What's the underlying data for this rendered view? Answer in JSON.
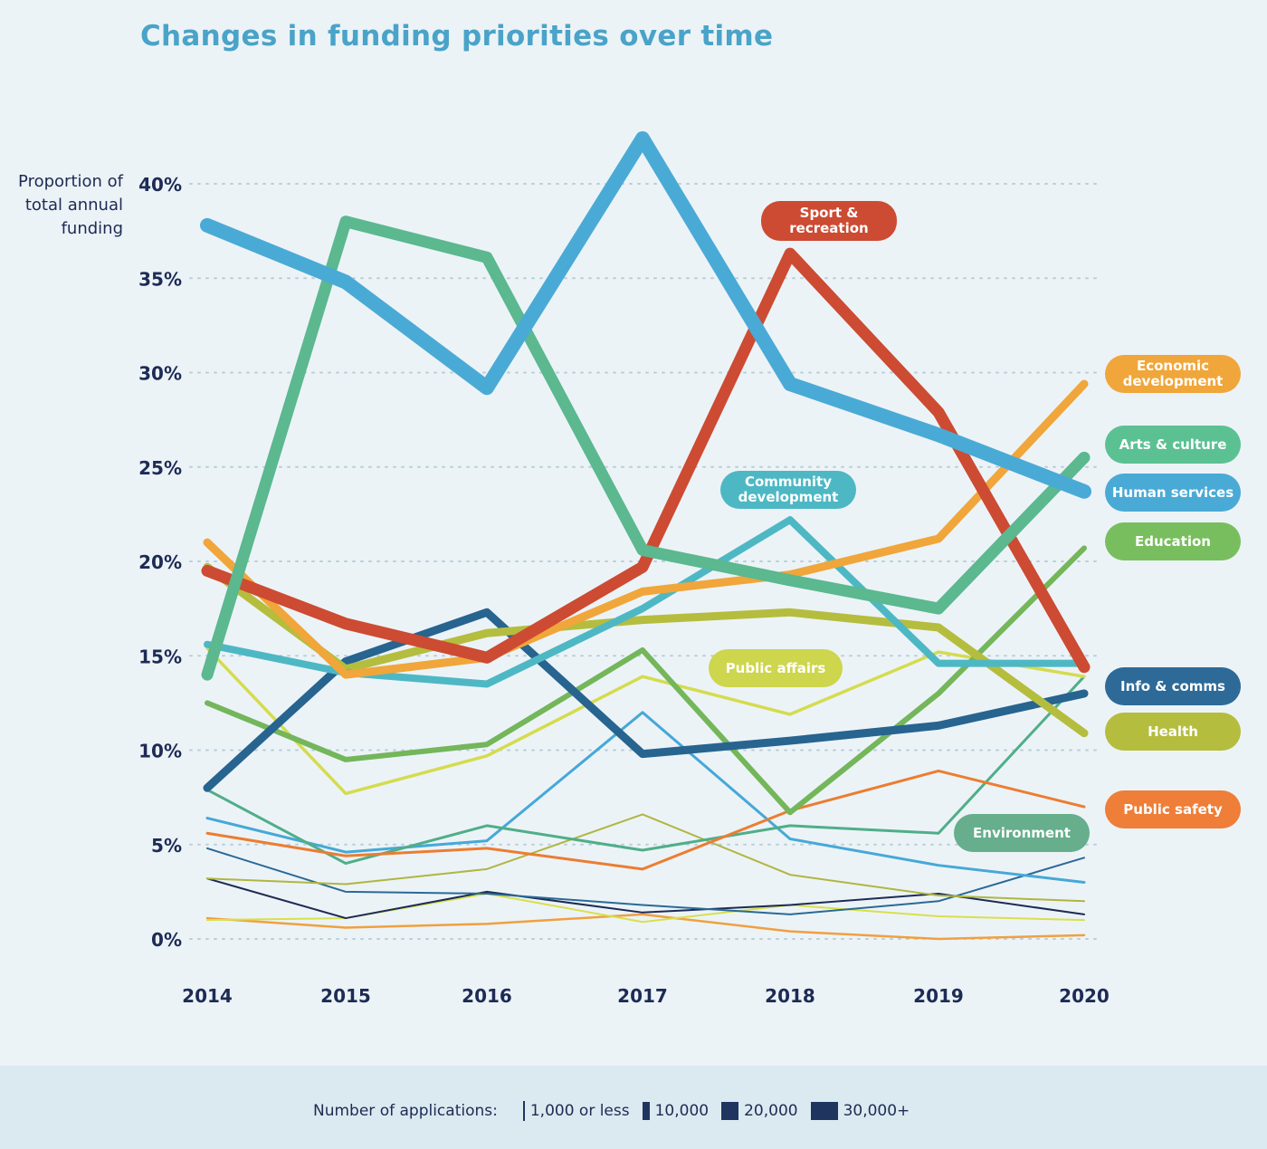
{
  "title": "Changes in funding priorities over time",
  "chart_data": {
    "type": "line",
    "title": "Changes in funding priorities over time",
    "ylabel": "Proportion of total annual funding",
    "xlabel": "",
    "x": [
      "2014",
      "2015",
      "2016",
      "2017",
      "2018",
      "2019",
      "2020"
    ],
    "ylim": [
      0,
      40
    ],
    "yticks": [
      "0%",
      "5%",
      "10%",
      "15%",
      "20%",
      "25%",
      "30%",
      "35%",
      "40%"
    ],
    "grid": "horizontal dotted",
    "series": [
      {
        "name": "",
        "color": "#f0a040",
        "values": [
          1.1,
          0.6,
          0.8,
          1.3,
          0.4,
          0.0,
          0.2
        ]
      },
      {
        "name": "",
        "color": "#d8e04a",
        "values": [
          1.0,
          1.1,
          2.4,
          0.9,
          1.8,
          1.2,
          1.0
        ]
      },
      {
        "name": "",
        "color": "#1d2b55",
        "values": [
          3.2,
          1.1,
          2.5,
          1.4,
          1.8,
          2.4,
          1.3
        ]
      },
      {
        "name": "",
        "color": "#2a6a96",
        "values": [
          4.8,
          2.5,
          2.4,
          1.8,
          1.3,
          2.0,
          4.3
        ]
      },
      {
        "name": "",
        "color": "#b0b640",
        "values": [
          3.2,
          2.9,
          3.7,
          6.6,
          3.4,
          2.3,
          2.0
        ]
      },
      {
        "name": "",
        "color": "#46a8d8",
        "values": [
          6.4,
          4.6,
          5.2,
          12.0,
          5.3,
          3.9,
          3.0
        ]
      },
      {
        "name": "Environment",
        "color": "#4fae88",
        "values": [
          7.9,
          4.0,
          6.0,
          4.7,
          6.0,
          5.6,
          13.9
        ]
      },
      {
        "name": "Public safety",
        "color": "#ec7d31",
        "values": [
          5.6,
          4.4,
          4.8,
          3.7,
          6.8,
          8.9,
          7.0
        ]
      },
      {
        "name": "Public affairs",
        "color": "#d4dc4e",
        "values": [
          15.4,
          7.7,
          9.7,
          13.9,
          11.9,
          15.2,
          13.9
        ]
      },
      {
        "name": "Education",
        "color": "#74b65a",
        "values": [
          12.5,
          9.5,
          10.3,
          15.3,
          6.7,
          13.0,
          20.7
        ]
      },
      {
        "name": "Info & comms",
        "color": "#27648f",
        "values": [
          8.0,
          14.7,
          17.3,
          9.8,
          10.5,
          11.3,
          13.0
        ]
      },
      {
        "name": "Health",
        "color": "#b5bd3e",
        "values": [
          19.7,
          14.3,
          16.2,
          16.9,
          17.3,
          16.5,
          10.9
        ]
      },
      {
        "name": "Community development",
        "color": "#4db8c4",
        "values": [
          15.6,
          14.1,
          13.5,
          17.5,
          22.2,
          14.6,
          14.6
        ]
      },
      {
        "name": "Economic development",
        "color": "#f0a63a",
        "values": [
          21.0,
          14.0,
          14.9,
          18.4,
          19.3,
          21.2,
          29.4
        ]
      },
      {
        "name": "Sport & recreation",
        "color": "#cc4b32",
        "values": [
          19.5,
          16.7,
          14.9,
          19.7,
          36.3,
          27.9,
          14.4
        ]
      },
      {
        "name": "Arts & culture",
        "color": "#5bb88f",
        "values": [
          14.0,
          38.0,
          36.1,
          20.6,
          19.0,
          17.5,
          25.5
        ]
      },
      {
        "name": "Human services",
        "color": "#4aaad6",
        "values": [
          37.8,
          34.8,
          29.2,
          42.4,
          29.4,
          26.7,
          23.7
        ]
      }
    ],
    "legend": {
      "title": "Number of applications:",
      "items": [
        "1,000 or less",
        "10,000",
        "20,000",
        "30,000+"
      ],
      "placement": "bottom"
    }
  }
}
